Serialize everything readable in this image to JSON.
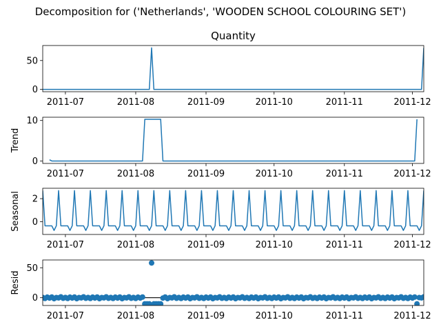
{
  "figure": {
    "title": "Decomposition for ('Netherlands', 'WOODEN SCHOOL COLOURING SET')"
  },
  "colors": {
    "line": "#1f77b4",
    "zero_line": "#000000",
    "axes": "#000000"
  },
  "chart_data": [
    {
      "type": "line",
      "panel": "observed",
      "title": "Quantity",
      "ylabel": "",
      "x_start": "2011-06-21",
      "x_end": "2011-12-06",
      "ylim": [
        -4,
        76
      ],
      "yticks": [
        0,
        50
      ],
      "xticks": [
        "2011-07",
        "2011-08",
        "2011-09",
        "2011-10",
        "2011-11",
        "2011-12"
      ],
      "points": [
        [
          "2011-06-21",
          0
        ],
        [
          "2011-08-07",
          0
        ],
        [
          "2011-08-08",
          72
        ],
        [
          "2011-08-09",
          0
        ],
        [
          "2011-12-05",
          0
        ],
        [
          "2011-12-06",
          72
        ]
      ]
    },
    {
      "type": "line",
      "panel": "trend",
      "title": "",
      "ylabel": "Trend",
      "x_start": "2011-06-21",
      "x_end": "2011-12-06",
      "ylim": [
        -0.6,
        10.8
      ],
      "yticks": [
        0,
        10
      ],
      "xticks": [
        "2011-07",
        "2011-08",
        "2011-09",
        "2011-10",
        "2011-11",
        "2011-12"
      ],
      "points": [
        [
          "2011-06-24",
          0.3
        ],
        [
          "2011-06-25",
          0
        ],
        [
          "2011-08-04",
          0
        ],
        [
          "2011-08-05",
          10.3
        ],
        [
          "2011-08-12",
          10.3
        ],
        [
          "2011-08-13",
          0
        ],
        [
          "2011-12-02",
          0
        ],
        [
          "2011-12-03",
          10.3
        ]
      ]
    },
    {
      "type": "line",
      "panel": "seasonal",
      "title": "",
      "ylabel": "Seasonal",
      "x_start": "2011-06-21",
      "x_end": "2011-12-06",
      "ylim": [
        -1.1,
        2.9
      ],
      "yticks": [
        0,
        2
      ],
      "xticks": [
        "2011-07",
        "2011-08",
        "2011-09",
        "2011-10",
        "2011-11",
        "2011-12"
      ],
      "period_days": 7,
      "first_cycle_start": "2011-06-21",
      "pattern": [
        2.7,
        -0.35,
        -0.35,
        -0.35,
        -0.35,
        -0.75,
        -0.35
      ]
    },
    {
      "type": "scatter",
      "panel": "resid",
      "title": "",
      "ylabel": "Resid",
      "x_start": "2011-06-21",
      "x_end": "2011-12-06",
      "ylim": [
        -13,
        63
      ],
      "yticks": [
        0,
        50
      ],
      "xticks": [
        "2011-07",
        "2011-08",
        "2011-09",
        "2011-10",
        "2011-11",
        "2011-12"
      ],
      "baseline": 0,
      "noise_pattern": [
        0.4,
        -1.2,
        0.9,
        -0.6,
        1.1,
        -1.6,
        0.2,
        -0.3,
        1.4,
        -0.9
      ],
      "outliers": [
        [
          "2011-08-05",
          -10.3
        ],
        [
          "2011-08-06",
          -10.3
        ],
        [
          "2011-08-07",
          -10.3
        ],
        [
          "2011-08-08",
          58
        ],
        [
          "2011-08-09",
          -10.3
        ],
        [
          "2011-08-10",
          -10.3
        ],
        [
          "2011-08-11",
          -10.3
        ],
        [
          "2011-08-12",
          -10.3
        ],
        [
          "2011-12-03",
          -10.3
        ]
      ]
    }
  ]
}
